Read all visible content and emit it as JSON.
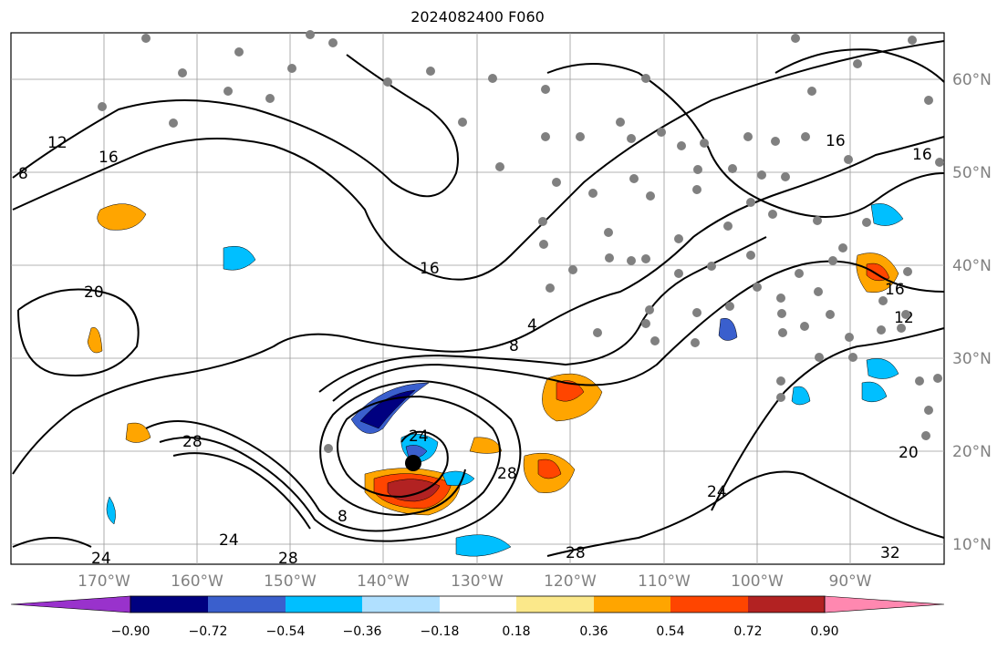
{
  "title": "2024082400 F060",
  "map": {
    "lon_ticks": [
      "170°W",
      "160°W",
      "150°W",
      "140°W",
      "130°W",
      "120°W",
      "110°W",
      "100°W",
      "90°W"
    ],
    "lat_ticks": [
      "60°N",
      "50°N",
      "40°N",
      "30°N",
      "20°N",
      "10°N"
    ],
    "lon_range": [
      -178,
      -78
    ],
    "lat_range": [
      8,
      65
    ]
  },
  "contour_labels": [
    "8",
    "12",
    "16",
    "20",
    "24",
    "28",
    "32",
    "4"
  ],
  "storm": {
    "lon": -136.7,
    "lat": 18.6,
    "label": "24"
  },
  "colorbar": {
    "ticks": [
      "−0.90",
      "−0.72",
      "−0.54",
      "−0.36",
      "−0.18",
      "0.18",
      "0.36",
      "0.54",
      "0.72",
      "0.90"
    ],
    "colors": [
      "#9932cc",
      "#000080",
      "#3a5fcd",
      "#00bfff",
      "#b0e0ff",
      "#ffffff",
      "#fbe88a",
      "#ffa500",
      "#ff4500",
      "#b22222",
      "#ff88b0"
    ]
  }
}
